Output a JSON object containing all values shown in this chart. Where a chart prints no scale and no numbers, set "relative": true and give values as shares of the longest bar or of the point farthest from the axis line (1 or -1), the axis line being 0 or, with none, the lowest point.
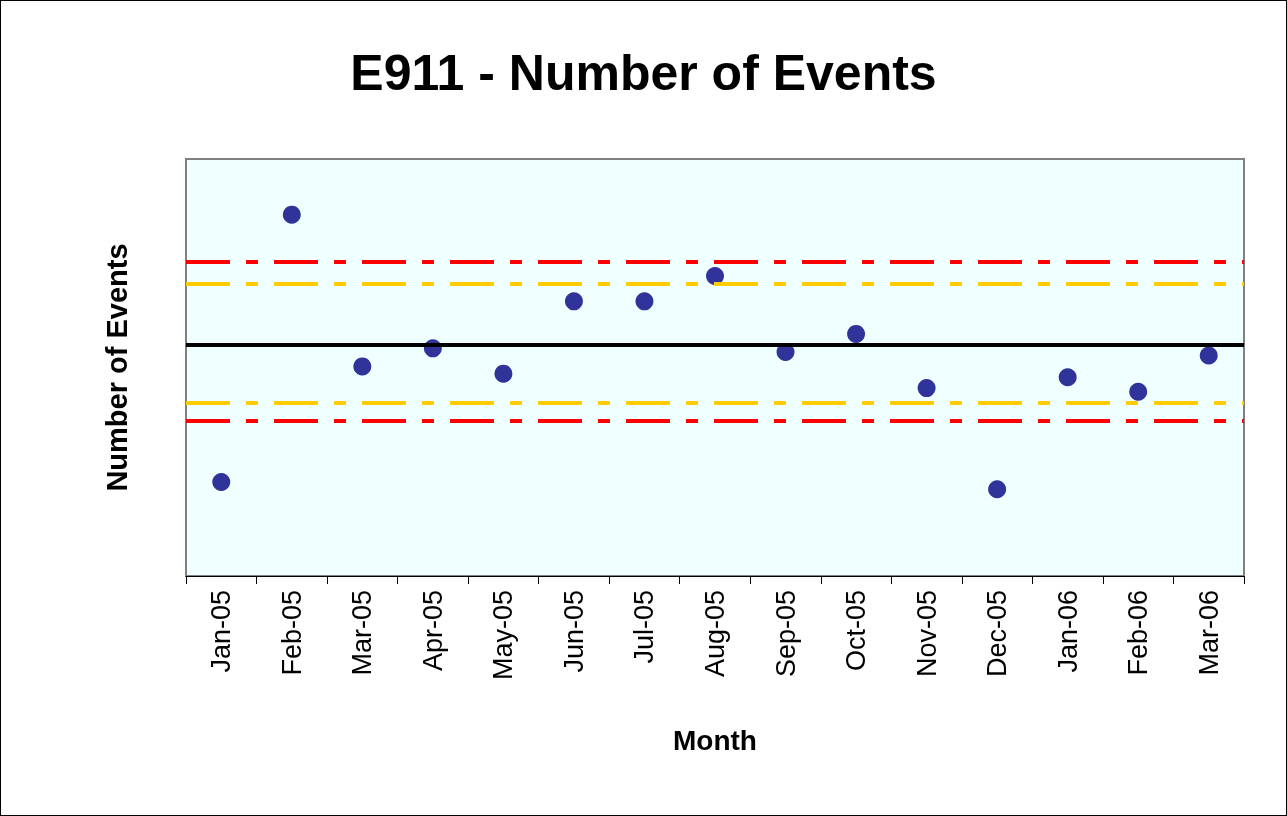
{
  "chart_data": {
    "type": "scatter",
    "title": "E911 - Number of Events",
    "xlabel": "Month",
    "ylabel": "Number of Events",
    "relative": true,
    "categories": [
      "Jan-05",
      "Feb-05",
      "Mar-05",
      "Apr-05",
      "May-05",
      "Jun-05",
      "Jul-05",
      "Aug-05",
      "Sep-05",
      "Oct-05",
      "Nov-05",
      "Dec-05",
      "Jan-06",
      "Feb-06",
      "Mar-06"
    ],
    "series": [
      {
        "color": "#000080",
        "values": [
          0.26,
          1,
          0.58,
          0.63,
          0.56,
          0.76,
          0.76,
          0.83,
          0.62,
          0.67,
          0.52,
          0.24,
          0.55,
          0.51,
          0.61
        ]
      }
    ],
    "ref_lines": [
      {
        "axis": "y",
        "value": 0.87,
        "color": "#ff0000",
        "line_style": "dashed"
      },
      {
        "axis": "y",
        "value": 0.81,
        "color": "#ffcc00",
        "line_style": "dashed"
      },
      {
        "axis": "y",
        "value": 0.64,
        "color": "#000000",
        "line_style": "solid"
      },
      {
        "axis": "y",
        "value": 0.48,
        "color": "#ffcc00",
        "line_style": "dashed"
      },
      {
        "axis": "y",
        "value": 0.43,
        "color": "#ff0000",
        "line_style": "dashed"
      }
    ],
    "marker": "circle"
  }
}
